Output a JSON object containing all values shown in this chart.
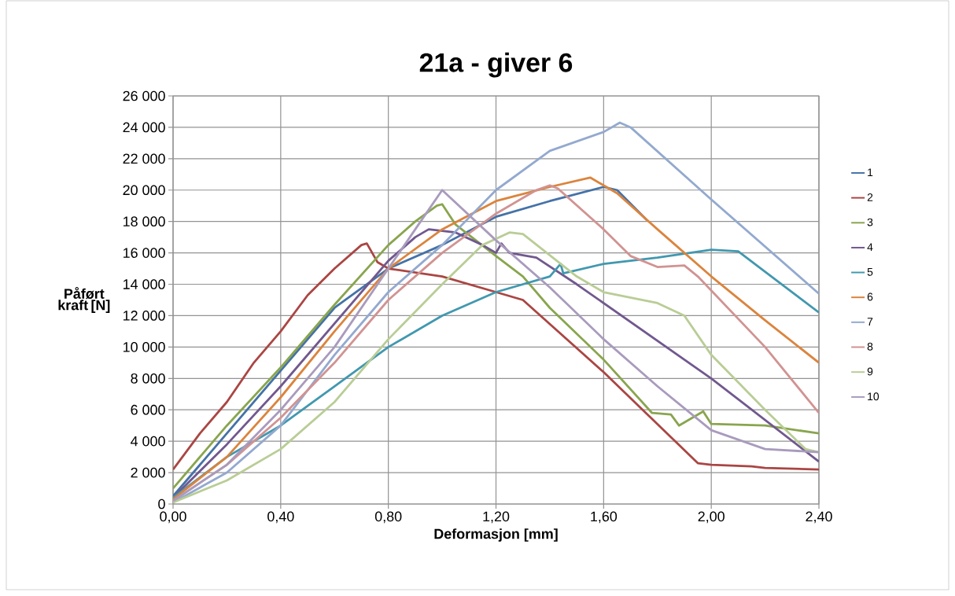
{
  "chart_data": {
    "type": "line",
    "title": "21a - giver 6",
    "xlabel": "Deformasjon [mm]",
    "ylabel": "Påført kraft [N]",
    "xlim": [
      0,
      2.4
    ],
    "ylim": [
      0,
      26000
    ],
    "xticks": [
      {
        "value": 0,
        "label": "0,00"
      },
      {
        "value": 0.4,
        "label": "0,40"
      },
      {
        "value": 0.8,
        "label": "0,80"
      },
      {
        "value": 1.2,
        "label": "1,20"
      },
      {
        "value": 1.6,
        "label": "1,60"
      },
      {
        "value": 2.0,
        "label": "2,00"
      },
      {
        "value": 2.4,
        "label": "2,40"
      }
    ],
    "yticks": [
      0,
      {
        "value": 2000,
        "label": "2 000"
      },
      {
        "value": 4000,
        "label": "4 000"
      },
      {
        "value": 6000,
        "label": "6 000"
      },
      {
        "value": 8000,
        "label": "8 000"
      },
      {
        "value": 10000,
        "label": "10 000"
      },
      {
        "value": 12000,
        "label": "12 000"
      },
      {
        "value": 14000,
        "label": "14 000"
      },
      {
        "value": 16000,
        "label": "16 000"
      },
      {
        "value": 18000,
        "label": "18 000"
      },
      {
        "value": 20000,
        "label": "20 000"
      },
      {
        "value": 22000,
        "label": "22 000"
      },
      {
        "value": 24000,
        "label": "24 000"
      },
      {
        "value": 26000,
        "label": "26 000"
      }
    ],
    "grid": true,
    "legend": "right",
    "marker": "none",
    "line_style": "solid",
    "series": [
      {
        "name": "1",
        "color": "#4572a7",
        "x": [
          0,
          0.2,
          0.4,
          0.6,
          0.8,
          1.0,
          1.2,
          1.4,
          1.6,
          1.65,
          1.76
        ],
        "values": [
          500,
          4500,
          8500,
          12500,
          15000,
          16500,
          18300,
          19300,
          20200,
          20000,
          18100
        ]
      },
      {
        "name": "2",
        "color": "#aa4643",
        "x": [
          0,
          0.1,
          0.2,
          0.3,
          0.4,
          0.5,
          0.6,
          0.7,
          0.72,
          0.76,
          0.8,
          1.0,
          1.1,
          1.2,
          1.3,
          1.6,
          1.95,
          2.0,
          2.15,
          2.2,
          2.4
        ],
        "values": [
          2200,
          4500,
          6500,
          9000,
          11000,
          13300,
          15000,
          16500,
          16600,
          15400,
          15000,
          14500,
          14000,
          13500,
          13000,
          8400,
          2600,
          2500,
          2400,
          2300,
          2200
        ]
      },
      {
        "name": "3",
        "color": "#89a54e",
        "x": [
          0,
          0.2,
          0.4,
          0.6,
          0.8,
          0.9,
          0.98,
          1.0,
          1.05,
          1.2,
          1.3,
          1.4,
          1.6,
          1.78,
          1.85,
          1.88,
          1.97,
          2.0,
          2.2,
          2.4
        ],
        "values": [
          1000,
          5000,
          8700,
          12700,
          16500,
          18000,
          19000,
          19100,
          17800,
          15800,
          14500,
          12500,
          9200,
          5800,
          5700,
          5000,
          5900,
          5100,
          5000,
          4500
        ]
      },
      {
        "name": "4",
        "color": "#71588f",
        "x": [
          0,
          0.2,
          0.4,
          0.6,
          0.8,
          0.9,
          0.95,
          1.05,
          1.15,
          1.2,
          1.22,
          1.25,
          1.35,
          1.5,
          2.0,
          2.4
        ],
        "values": [
          400,
          3800,
          7500,
          11500,
          15500,
          17000,
          17500,
          17300,
          16500,
          16000,
          16600,
          16000,
          15700,
          14000,
          8000,
          2700
        ]
      },
      {
        "name": "5",
        "color": "#4198af",
        "x": [
          0,
          0.2,
          0.4,
          0.6,
          0.8,
          1.0,
          1.2,
          1.4,
          1.44,
          1.45,
          1.6,
          1.8,
          2.0,
          2.1,
          2.2,
          2.4
        ],
        "values": [
          400,
          3000,
          5000,
          7500,
          10000,
          12000,
          13500,
          14500,
          15300,
          14700,
          15300,
          15700,
          16200,
          16100,
          14800,
          12200
        ]
      },
      {
        "name": "6",
        "color": "#db843d",
        "x": [
          0,
          0.2,
          0.4,
          0.6,
          0.8,
          1.0,
          1.2,
          1.4,
          1.55,
          1.65,
          1.8,
          2.0,
          2.2,
          2.4
        ],
        "values": [
          300,
          3000,
          6800,
          11000,
          15000,
          17500,
          19300,
          20200,
          20800,
          19800,
          17500,
          14500,
          11700,
          9000
        ]
      },
      {
        "name": "7",
        "color": "#93a9cf",
        "x": [
          0,
          0.2,
          0.4,
          0.6,
          0.8,
          1.0,
          1.2,
          1.4,
          1.6,
          1.66,
          1.7,
          2.0,
          2.4
        ],
        "values": [
          100,
          2000,
          5000,
          9500,
          13500,
          16500,
          20000,
          22500,
          23700,
          24300,
          24000,
          19400,
          13400
        ]
      },
      {
        "name": "8",
        "color": "#d19392",
        "x": [
          0,
          0.2,
          0.4,
          0.6,
          0.8,
          1.0,
          1.2,
          1.35,
          1.4,
          1.43,
          1.6,
          1.7,
          1.8,
          1.9,
          1.95,
          2.2,
          2.4
        ],
        "values": [
          200,
          2500,
          5500,
          9000,
          13000,
          16000,
          18500,
          20000,
          20300,
          20100,
          17500,
          15800,
          15100,
          15200,
          14500,
          10000,
          5800
        ]
      },
      {
        "name": "9",
        "color": "#b9cd96",
        "x": [
          0,
          0.2,
          0.4,
          0.6,
          0.8,
          1.0,
          1.15,
          1.25,
          1.3,
          1.5,
          1.6,
          1.8,
          1.9,
          2.0,
          2.2,
          2.35,
          2.4
        ],
        "values": [
          100,
          1500,
          3500,
          6500,
          10500,
          14000,
          16500,
          17300,
          17200,
          14500,
          13500,
          12800,
          12000,
          9500,
          6000,
          3500,
          3300
        ]
      },
      {
        "name": "10",
        "color": "#a99bbd",
        "x": [
          0,
          0.2,
          0.4,
          0.6,
          0.8,
          0.9,
          1.0,
          1.2,
          1.4,
          1.6,
          1.8,
          2.0,
          2.2,
          2.4
        ],
        "values": [
          200,
          2500,
          6000,
          10000,
          15000,
          17500,
          20000,
          16800,
          13800,
          10500,
          7500,
          4700,
          3500,
          3300
        ]
      }
    ]
  }
}
